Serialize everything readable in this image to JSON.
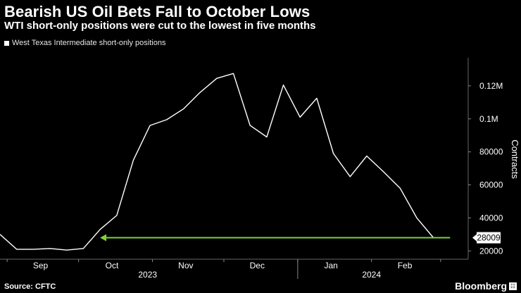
{
  "title": "Bearish US Oil Bets Fall to October Lows",
  "subtitle": "WTI short-only positions were cut to the lowest in five months",
  "source": "Source: CFTC",
  "brand": "Bloomberg",
  "brand_badge": "☷",
  "colors": {
    "line": "#ffffff",
    "arrow": "#7fd13b",
    "background": "#000000",
    "text": "#ffffff"
  },
  "chart_data": {
    "type": "line",
    "title": "Bearish US Oil Bets Fall to October Lows",
    "subtitle": "WTI short-only positions were cut to the lowest in five months",
    "xlabel": "",
    "ylabel": "Contracts",
    "ylim": [
      15000,
      140000
    ],
    "xlim": [
      "2023-08-29",
      "2024-03-12"
    ],
    "legend": [
      "West Texas Intermediate short-only positions"
    ],
    "legend_position": "top-left",
    "grid": false,
    "y_ticks": [
      {
        "value": 20000,
        "label": "20000"
      },
      {
        "value": 40000,
        "label": "40000"
      },
      {
        "value": 60000,
        "label": "60000"
      },
      {
        "value": 80000,
        "label": "80000"
      },
      {
        "value": 100000,
        "label": "0.1M"
      },
      {
        "value": 120000,
        "label": "0.12M"
      }
    ],
    "x_ticks": [
      {
        "date": "2023-09-15",
        "label": "Sep"
      },
      {
        "date": "2023-10-15",
        "label": "Oct"
      },
      {
        "date": "2023-11-15",
        "label": "Nov"
      },
      {
        "date": "2023-12-15",
        "label": "Dec"
      },
      {
        "date": "2024-01-15",
        "label": "Jan"
      },
      {
        "date": "2024-02-15",
        "label": "Feb"
      }
    ],
    "month_separators": [
      "2023-09-01",
      "2023-10-01",
      "2023-11-01",
      "2023-12-01",
      "2024-01-01",
      "2024-02-01",
      "2024-03-01"
    ],
    "year_labels": [
      {
        "date": "2023-10-30",
        "label": "2023"
      },
      {
        "date": "2024-02-01",
        "label": "2024"
      }
    ],
    "year_separator": "2024-01-01",
    "series": [
      {
        "name": "West Texas Intermediate short-only positions",
        "x": [
          "2023-08-29",
          "2023-09-05",
          "2023-09-12",
          "2023-09-19",
          "2023-09-26",
          "2023-10-03",
          "2023-10-10",
          "2023-10-17",
          "2023-10-24",
          "2023-10-31",
          "2023-11-07",
          "2023-11-14",
          "2023-11-21",
          "2023-11-28",
          "2023-12-05",
          "2023-12-12",
          "2023-12-19",
          "2023-12-26",
          "2024-01-02",
          "2024-01-09",
          "2024-01-16",
          "2024-01-23",
          "2024-01-30",
          "2024-02-06",
          "2024-02-13",
          "2024-02-20",
          "2024-02-27",
          "2024-03-05"
        ],
        "y": [
          30000,
          21000,
          21000,
          21500,
          20500,
          21500,
          33000,
          41500,
          75000,
          96000,
          99500,
          106000,
          116000,
          124500,
          127500,
          96000,
          89000,
          120500,
          101000,
          112500,
          79000,
          65000,
          77500,
          68000,
          58000,
          40000,
          28009,
          null
        ]
      }
    ],
    "annotations": [
      {
        "type": "arrow",
        "from_date": "2024-03-05",
        "to_date": "2023-10-10",
        "value": 28009,
        "label": "28009"
      }
    ]
  }
}
